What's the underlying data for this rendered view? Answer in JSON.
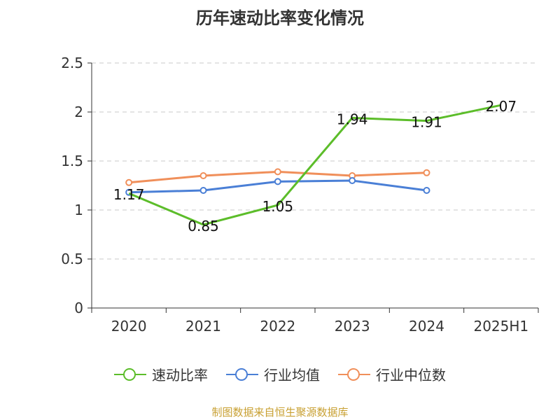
{
  "chart_data": {
    "type": "line",
    "title": "历年速动比率变化情况",
    "categories": [
      "2020",
      "2021",
      "2022",
      "2023",
      "2024",
      "2025H1"
    ],
    "ylim": [
      0,
      2.5
    ],
    "yticks": [
      "0",
      "0.5",
      "1",
      "1.5",
      "2",
      "2.5"
    ],
    "ytick_values": [
      0,
      0.5,
      1,
      1.5,
      2,
      2.5
    ],
    "grid": true,
    "legend_position": "bottom",
    "series": [
      {
        "name": "速动比率",
        "color": "#5cbd2a",
        "values": [
          1.17,
          0.85,
          1.05,
          1.94,
          1.91,
          2.07
        ],
        "labels": [
          "1.17",
          "0.85",
          "1.05",
          "1.94",
          "1.91",
          "2.07"
        ]
      },
      {
        "name": "行业均值",
        "color": "#4a7fd6",
        "values": [
          1.18,
          1.2,
          1.29,
          1.3,
          1.2,
          null
        ]
      },
      {
        "name": "行业中位数",
        "color": "#f08f5a",
        "values": [
          1.28,
          1.35,
          1.39,
          1.35,
          1.38,
          null
        ]
      }
    ]
  },
  "footer": {
    "source": "制图数据来自恒生聚源数据库"
  }
}
